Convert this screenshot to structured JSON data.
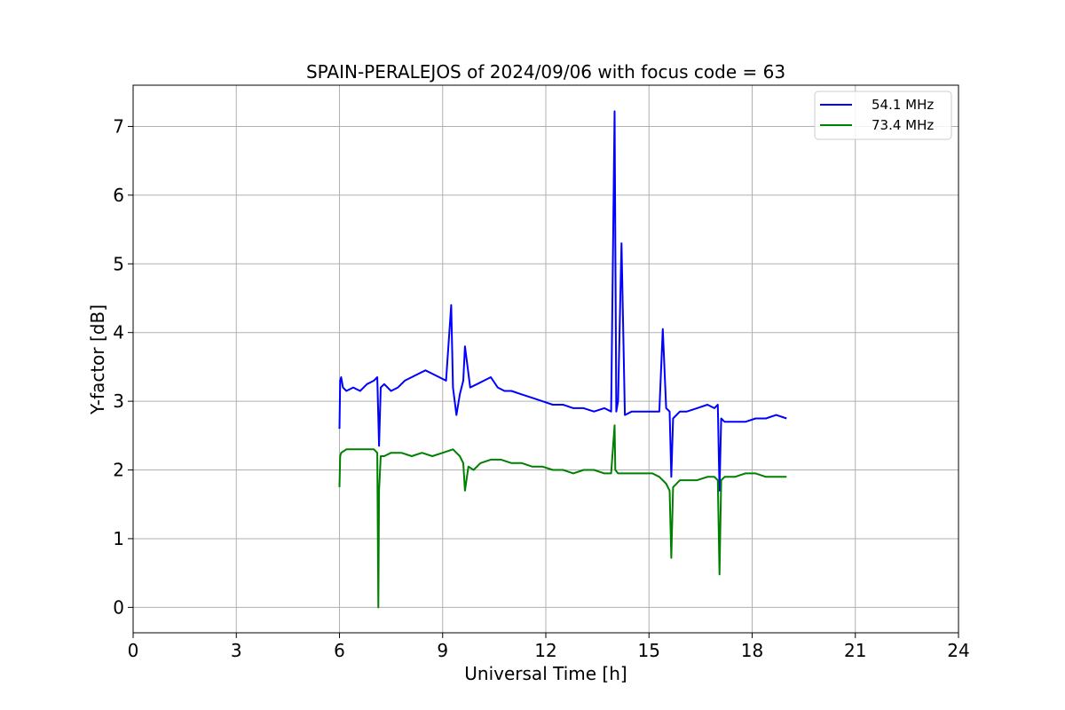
{
  "chart_data": {
    "type": "line",
    "title": "SPAIN-PERALEJOS of 2024/09/06 with focus code = 63",
    "xlabel": "Universal Time [h]",
    "ylabel": "Y-factor [dB]",
    "xlim": [
      0,
      24
    ],
    "ylim": [
      -0.37,
      7.6
    ],
    "xticks": [
      "0",
      "3",
      "6",
      "9",
      "12",
      "15",
      "18",
      "21",
      "24"
    ],
    "yticks": [
      "0",
      "1",
      "2",
      "3",
      "4",
      "5",
      "6",
      "7"
    ],
    "grid": true,
    "legend_position": "top-right",
    "series": [
      {
        "name": "54.1 MHz",
        "color": "#0000ff",
        "x": [
          6.0,
          6.02,
          6.05,
          6.1,
          6.2,
          6.4,
          6.6,
          6.8,
          7.0,
          7.1,
          7.15,
          7.2,
          7.3,
          7.5,
          7.7,
          7.9,
          8.1,
          8.3,
          8.5,
          8.7,
          8.9,
          9.1,
          9.25,
          9.3,
          9.4,
          9.5,
          9.6,
          9.65,
          9.8,
          10.0,
          10.2,
          10.4,
          10.6,
          10.8,
          11.0,
          11.3,
          11.6,
          11.9,
          12.2,
          12.5,
          12.8,
          13.1,
          13.4,
          13.7,
          13.9,
          14.0,
          14.05,
          14.1,
          14.2,
          14.3,
          14.5,
          14.8,
          15.1,
          15.3,
          15.4,
          15.5,
          15.6,
          15.65,
          15.7,
          15.9,
          16.1,
          16.4,
          16.7,
          16.9,
          17.0,
          17.05,
          17.1,
          17.2,
          17.5,
          17.8,
          18.1,
          18.4,
          18.7,
          19.0
        ],
        "y": [
          2.6,
          3.3,
          3.35,
          3.2,
          3.15,
          3.2,
          3.15,
          3.25,
          3.3,
          3.35,
          2.35,
          3.2,
          3.25,
          3.15,
          3.2,
          3.3,
          3.35,
          3.4,
          3.45,
          3.4,
          3.35,
          3.3,
          4.4,
          3.2,
          2.8,
          3.1,
          3.3,
          3.8,
          3.2,
          3.25,
          3.3,
          3.35,
          3.2,
          3.15,
          3.15,
          3.1,
          3.05,
          3.0,
          2.95,
          2.95,
          2.9,
          2.9,
          2.85,
          2.9,
          2.85,
          7.22,
          2.85,
          3.0,
          5.3,
          2.8,
          2.85,
          2.85,
          2.85,
          2.85,
          4.05,
          2.9,
          2.85,
          1.9,
          2.75,
          2.85,
          2.85,
          2.9,
          2.95,
          2.9,
          2.95,
          1.7,
          2.75,
          2.7,
          2.7,
          2.7,
          2.75,
          2.75,
          2.8,
          2.75
        ]
      },
      {
        "name": "73.4 MHz",
        "color": "#008000",
        "x": [
          6.0,
          6.02,
          6.05,
          6.2,
          6.4,
          6.6,
          6.8,
          7.0,
          7.1,
          7.13,
          7.15,
          7.2,
          7.3,
          7.5,
          7.8,
          8.1,
          8.4,
          8.7,
          9.0,
          9.3,
          9.5,
          9.6,
          9.65,
          9.75,
          9.9,
          10.1,
          10.4,
          10.7,
          11.0,
          11.3,
          11.6,
          11.9,
          12.2,
          12.5,
          12.8,
          13.1,
          13.4,
          13.7,
          13.9,
          14.0,
          14.02,
          14.1,
          14.3,
          14.6,
          14.9,
          15.1,
          15.3,
          15.5,
          15.6,
          15.65,
          15.7,
          15.9,
          16.1,
          16.4,
          16.7,
          16.9,
          17.0,
          17.05,
          17.1,
          17.2,
          17.5,
          17.8,
          18.1,
          18.4,
          18.7,
          19.0
        ],
        "y": [
          1.75,
          2.2,
          2.25,
          2.3,
          2.3,
          2.3,
          2.3,
          2.3,
          2.25,
          0.0,
          1.7,
          2.2,
          2.2,
          2.25,
          2.25,
          2.2,
          2.25,
          2.2,
          2.25,
          2.3,
          2.2,
          2.1,
          1.7,
          2.05,
          2.0,
          2.1,
          2.15,
          2.15,
          2.1,
          2.1,
          2.05,
          2.05,
          2.0,
          2.0,
          1.95,
          2.0,
          2.0,
          1.95,
          1.95,
          2.65,
          2.0,
          1.95,
          1.95,
          1.95,
          1.95,
          1.95,
          1.9,
          1.8,
          1.7,
          0.72,
          1.75,
          1.85,
          1.85,
          1.85,
          1.9,
          1.9,
          1.85,
          0.48,
          1.85,
          1.9,
          1.9,
          1.95,
          1.95,
          1.9,
          1.9,
          1.9
        ]
      }
    ]
  }
}
